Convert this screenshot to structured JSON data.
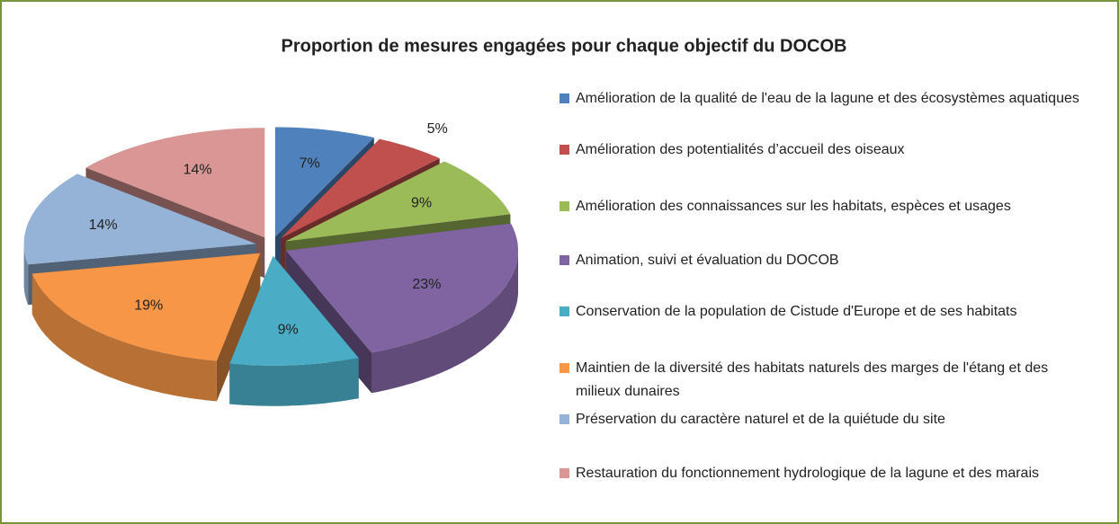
{
  "chart_data": {
    "type": "pie",
    "title": "Proportion de mesures engagées pour chaque objectif du DOCOB",
    "categories": [
      "Amélioration de la qualité de l'eau de la lagune et des écosystèmes aquatiques",
      "Amélioration des potentialités d’accueil des oiseaux",
      "Amélioration des connaissances sur les habitats, espèces et usages",
      "Animation, suivi et évaluation du DOCOB",
      "Conservation de la population de Cistude d'Europe et de ses habitats",
      "Maintien de la diversité des habitats naturels des marges de l'étang et des milieux dunaires",
      "Préservation du caractère naturel et de la quiétude du site",
      "Restauration du fonctionnement hydrologique  de la lagune et des marais"
    ],
    "values": [
      7,
      5,
      9,
      23,
      9,
      19,
      14,
      14
    ],
    "value_labels": [
      "7%",
      "5%",
      "9%",
      "23%",
      "9%",
      "19%",
      "14%",
      "14%"
    ],
    "colors": [
      "#4f81bd",
      "#c0504d",
      "#9bbb59",
      "#8064a2",
      "#4bacc6",
      "#f79646",
      "#95b3d7",
      "#d99694"
    ],
    "legend": "right"
  }
}
